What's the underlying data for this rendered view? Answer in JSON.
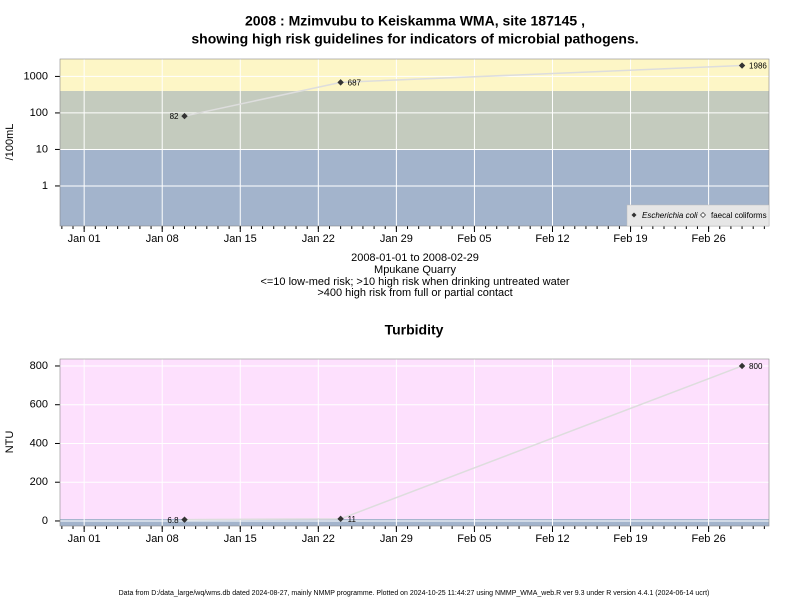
{
  "chart_data": [
    {
      "type": "line",
      "title": [
        "2008 : Mzimvubu to Keiskamma WMA, site 187145 ,",
        "showing high risk guidelines for indicators of microbial pathogens."
      ],
      "subtitle": [
        "2008-01-01 to 2008-02-29",
        "Mpukane Quarry",
        "<=10 low-med risk; >10 high risk when drinking untreated water",
        ">400 high risk from full or partial contact"
      ],
      "ylabel": "/100mL",
      "log": true,
      "ylim": [
        0.08,
        3000
      ],
      "yticks": [
        1,
        10,
        100,
        1000
      ],
      "xlim": [
        "2007-12-29T20:00",
        "2008-03-02T10:00"
      ],
      "xticks": [
        {
          "value": "2008-01-01",
          "label": "Jan 01"
        },
        {
          "value": "2008-01-08",
          "label": "Jan 08"
        },
        {
          "value": "2008-01-15",
          "label": "Jan 15"
        },
        {
          "value": "2008-01-22",
          "label": "Jan 22"
        },
        {
          "value": "2008-01-29",
          "label": "Jan 29"
        },
        {
          "value": "2008-02-05",
          "label": "Feb 05"
        },
        {
          "value": "2008-02-12",
          "label": "Feb 12"
        },
        {
          "value": "2008-02-19",
          "label": "Feb 19"
        },
        {
          "value": "2008-02-26",
          "label": "Feb 26"
        }
      ],
      "grid": true,
      "thresholds": [
        10,
        400
      ],
      "band_colors": [
        "#a3b4cc",
        "#c4cbbe",
        "#fdf6c6"
      ],
      "x": [
        "2008-01-10",
        "2008-01-24",
        "2008-02-29"
      ],
      "series": [
        {
          "name": "Escherichia coli",
          "color": "#333333",
          "line_color": "#dddddd",
          "values": [
            82,
            687,
            1986
          ]
        }
      ],
      "legend": {
        "position": "bottom-right",
        "entries": [
          "Escherichia coli",
          "faecal coliforms"
        ]
      }
    },
    {
      "type": "line",
      "title": "Turbidity",
      "ylabel": "NTU",
      "log": false,
      "ylim": [
        -26,
        836
      ],
      "yticks": [
        0,
        200,
        400,
        600,
        800
      ],
      "xlim": [
        "2007-12-29T20:00",
        "2008-03-02T10:00"
      ],
      "xticks": [
        {
          "value": "2008-01-01",
          "label": "Jan 01"
        },
        {
          "value": "2008-01-08",
          "label": "Jan 08"
        },
        {
          "value": "2008-01-15",
          "label": "Jan 15"
        },
        {
          "value": "2008-01-22",
          "label": "Jan 22"
        },
        {
          "value": "2008-01-29",
          "label": "Jan 29"
        },
        {
          "value": "2008-02-05",
          "label": "Feb 05"
        },
        {
          "value": "2008-02-12",
          "label": "Feb 12"
        },
        {
          "value": "2008-02-19",
          "label": "Feb 19"
        },
        {
          "value": "2008-02-26",
          "label": "Feb 26"
        }
      ],
      "grid": true,
      "thresholds": [
        10
      ],
      "band_colors": [
        "#a3b4cc",
        "#fde0fd"
      ],
      "x": [
        "2008-01-10",
        "2008-01-24",
        "2008-02-29"
      ],
      "series": [
        {
          "color": "#333333",
          "line_color": "#dddddd",
          "values": [
            6.8,
            11,
            800
          ]
        }
      ]
    }
  ],
  "footer": "Data from D:/data_large/wq/wms.db dated 2024-08-27, mainly NMMP programme. Plotted on 2024-10-25 11:44:27 using NMMP_WMA_web.R ver 9.3 under R version 4.4.1 (2024-06-14 ucrt)"
}
